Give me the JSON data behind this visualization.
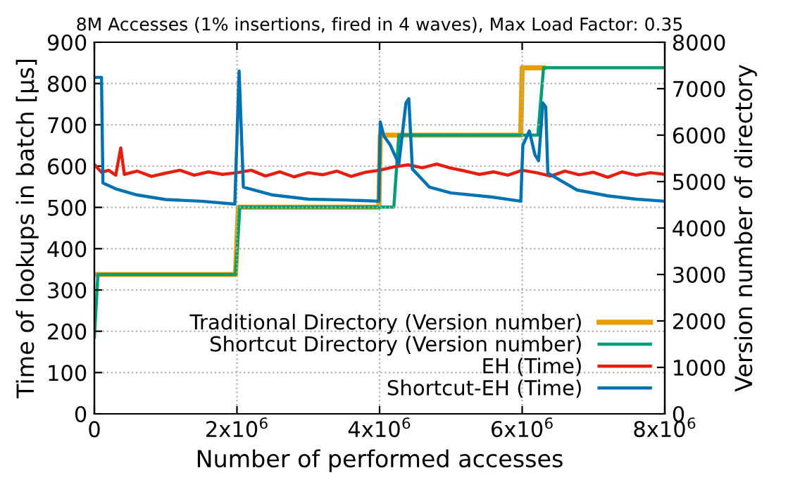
{
  "chart_data": {
    "type": "line",
    "title": "8M Accesses (1% insertions, fired in 4 waves), Max Load Factor: 0.35",
    "xlabel": "Number of performed accesses",
    "ylabel": "Time of lookups in batch [µs]",
    "y2label": "Version number of directory",
    "xlim": [
      0,
      8000000
    ],
    "xticks": [
      {
        "value": 0,
        "label": "0"
      },
      {
        "value": 2000000,
        "label": "2x10$^{6}$"
      },
      {
        "value": 4000000,
        "label": "4x10$^{6}$"
      },
      {
        "value": 6000000,
        "label": "6x10$^{6}$"
      },
      {
        "value": 8000000,
        "label": "8x10$^{6}$"
      }
    ],
    "ylim": [
      0,
      900
    ],
    "yticks": [
      0,
      100,
      200,
      300,
      400,
      500,
      600,
      700,
      800,
      900
    ],
    "y2lim": [
      0,
      8000
    ],
    "y2ticks": [
      0,
      1000,
      2000,
      3000,
      4000,
      5000,
      6000,
      7000,
      8000
    ],
    "grid": true,
    "legend": "bottom right",
    "line_style": "solid",
    "marker": "none",
    "series": [
      {
        "name": "Traditional Directory (Version number)",
        "color": "#e69f00",
        "axis": "y2",
        "x": [
          0,
          1980000,
          2020000,
          3990000,
          4010000,
          5980000,
          6000000,
          6300000
        ],
        "values": [
          3000,
          3000,
          4450,
          4450,
          6000,
          6000,
          7450,
          7450
        ]
      },
      {
        "name": "Shortcut Directory (Version number)",
        "color": "#009e73",
        "axis": "y2",
        "x": [
          0,
          50000,
          1980000,
          2040000,
          4200000,
          4270000,
          6220000,
          6300000,
          8000000
        ],
        "values": [
          1650,
          3000,
          3000,
          4450,
          4450,
          6000,
          6000,
          7450,
          7450
        ]
      },
      {
        "name": "EH (Time)",
        "color": "#e51e10",
        "x": [
          0,
          100000,
          200000,
          300000,
          370000,
          420000,
          600000,
          800000,
          1000000,
          1200000,
          1400000,
          1600000,
          1800000,
          2000000,
          2200000,
          2400000,
          2600000,
          2800000,
          3000000,
          3200000,
          3400000,
          3600000,
          3800000,
          4000000,
          4200000,
          4400000,
          4600000,
          4800000,
          5000000,
          5200000,
          5400000,
          5600000,
          5800000,
          6000000,
          6200000,
          6400000,
          6600000,
          6800000,
          7000000,
          7200000,
          7400000,
          7600000,
          7800000,
          8000000
        ],
        "values": [
          604,
          585,
          590,
          578,
          644,
          580,
          588,
          575,
          583,
          590,
          578,
          586,
          580,
          584,
          590,
          576,
          586,
          574,
          584,
          579,
          588,
          575,
          585,
          590,
          598,
          603,
          596,
          605,
          595,
          588,
          580,
          586,
          578,
          590,
          584,
          576,
          588,
          579,
          585,
          573,
          586,
          578,
          584,
          580
        ]
      },
      {
        "name": "Shortcut-EH (Time)",
        "color": "#0072b2",
        "x": [
          0,
          100000,
          120000,
          300000,
          600000,
          1000000,
          1500000,
          1970000,
          2030000,
          2090000,
          2500000,
          3000000,
          3500000,
          3990000,
          4010000,
          4060000,
          4150000,
          4270000,
          4370000,
          4410000,
          4460000,
          4700000,
          5000000,
          5580000,
          5980000,
          6010000,
          6100000,
          6180000,
          6230000,
          6290000,
          6330000,
          6360000,
          6770000,
          7200000,
          7600000,
          8000000
        ],
        "values": [
          815,
          815,
          559,
          545,
          530,
          519,
          515,
          508,
          830,
          549,
          530,
          520,
          518,
          515,
          707,
          673,
          651,
          605,
          753,
          763,
          593,
          549,
          535,
          525,
          515,
          651,
          685,
          627,
          613,
          753,
          743,
          583,
          542,
          528,
          520,
          515
        ]
      }
    ]
  }
}
